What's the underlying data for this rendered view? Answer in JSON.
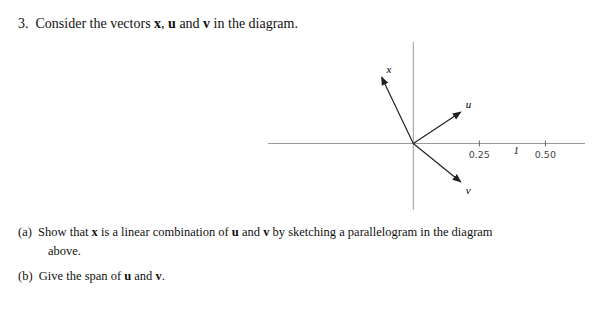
{
  "chart_data": {
    "type": "vector",
    "title": "3.  Consider the vectors x, u and v in the diagram.",
    "series": [
      {
        "name": "x",
        "x": [
          -0.12
        ],
        "values": [
          0.38
        ],
        "color": "#222222"
      },
      {
        "name": "u",
        "x": [
          0.18
        ],
        "values": [
          0.18
        ],
        "color": "#222222"
      },
      {
        "name": "v",
        "x": [
          0.18
        ],
        "values": [
          -0.22
        ],
        "color": "#222222"
      }
    ],
    "xlim": [
      -0.55,
      0.65
    ],
    "ylim": [
      -0.38,
      0.58
    ],
    "xticks": [
      0.25,
      {
        "value": 0.5,
        "label": "0.50"
      }
    ],
    "yticks": [],
    "tick_labels": "x",
    "grid": false,
    "annotations": [
      {
        "text": "1",
        "x": 0.38,
        "y": -0.06
      },
      {
        "text": "(a)  Show that x is a linear combination of u and v by sketching a parallelogram in the diagram"
      },
      {
        "text": "above."
      },
      {
        "text": "(b)  Give the span of u and v."
      }
    ]
  }
}
